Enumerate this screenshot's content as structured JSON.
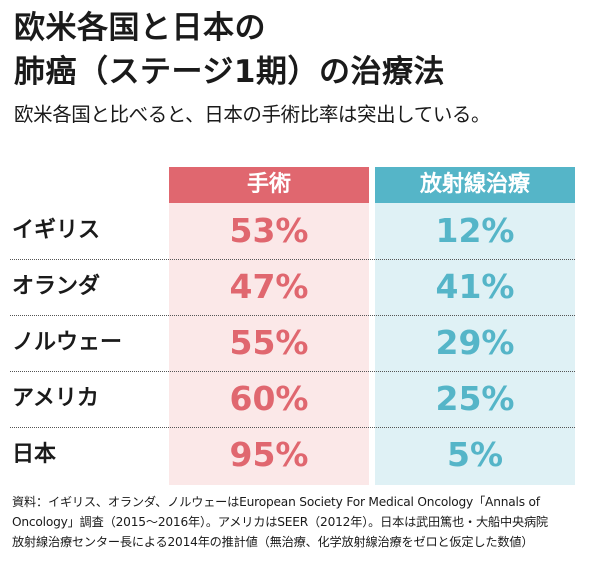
{
  "title": {
    "line1": "欧米各国と日本の",
    "line2": "肺癌（ステージ1期）の治療法"
  },
  "subtitle": "欧米各国と比べると、日本の手術比率は突出している。",
  "chart_data": {
    "type": "table",
    "columns": [
      "手術",
      "放射線治療"
    ],
    "categories": [
      "イギリス",
      "オランダ",
      "ノルウェー",
      "アメリカ",
      "日本"
    ],
    "series": [
      {
        "name": "手術",
        "values": [
          53,
          47,
          55,
          60,
          95
        ],
        "labels": [
          "53%",
          "47%",
          "55%",
          "60%",
          "95%"
        ],
        "color": "#e0676f"
      },
      {
        "name": "放射線治療",
        "values": [
          12,
          41,
          29,
          25,
          5
        ],
        "labels": [
          "12%",
          "41%",
          "29%",
          "25%",
          "5%"
        ],
        "color": "#55b5c8"
      }
    ],
    "unit": "%"
  },
  "source": {
    "line1": "資料：イギリス、オランダ、ノルウェーはEuropean Society For Medical Oncology「Annals of",
    "line2": "Oncology」調査（2015～2016年）。アメリカはSEER（2012年）。日本は武田篤也・大船中央病院",
    "line3": "放射線治療センター長による2014年の推計値（無治療、化学放射線治療をゼロと仮定した数値）"
  }
}
